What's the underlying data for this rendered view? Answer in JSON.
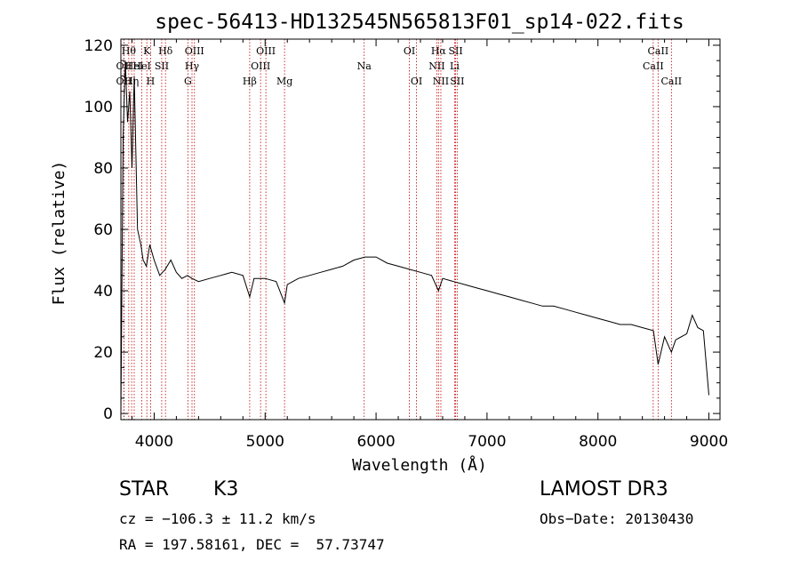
{
  "chart_data": {
    "type": "line",
    "title": "spec-56413-HD132545N565813F01_sp14-022.fits",
    "xlabel": "Wavelength (Å)",
    "ylabel": "Flux (relative)",
    "xlim": [
      3700,
      9100
    ],
    "ylim": [
      -2,
      122
    ],
    "xticks": [
      4000,
      5000,
      6000,
      7000,
      8000,
      9000
    ],
    "yticks": [
      0,
      20,
      40,
      60,
      80,
      100,
      120
    ],
    "grid": false,
    "line_color": "#000000",
    "marker_color": "#c00000",
    "spectrum": {
      "x": [
        3700,
        3720,
        3740,
        3760,
        3780,
        3800,
        3820,
        3850,
        3880,
        3900,
        3930,
        3960,
        4000,
        4050,
        4100,
        4150,
        4200,
        4250,
        4300,
        4340,
        4400,
        4500,
        4600,
        4700,
        4800,
        4861,
        4900,
        5000,
        5100,
        5175,
        5200,
        5300,
        5400,
        5500,
        5600,
        5700,
        5800,
        5900,
        6000,
        6100,
        6200,
        6300,
        6400,
        6500,
        6563,
        6600,
        6700,
        6800,
        6900,
        7000,
        7100,
        7200,
        7300,
        7400,
        7500,
        7600,
        7700,
        7800,
        7900,
        8000,
        8100,
        8200,
        8300,
        8400,
        8500,
        8542,
        8600,
        8662,
        8700,
        8800,
        8850,
        8900,
        8950,
        9000
      ],
      "y": [
        0,
        90,
        115,
        95,
        105,
        80,
        110,
        60,
        55,
        50,
        48,
        55,
        50,
        45,
        47,
        50,
        46,
        44,
        45,
        44,
        43,
        44,
        45,
        46,
        45,
        38,
        44,
        44,
        43,
        36,
        42,
        44,
        45,
        46,
        47,
        48,
        50,
        51,
        51,
        49,
        48,
        47,
        46,
        45,
        40,
        44,
        43,
        42,
        41,
        40,
        39,
        38,
        37,
        36,
        35,
        35,
        34,
        33,
        32,
        31,
        30,
        29,
        29,
        28,
        27,
        16,
        25,
        20,
        24,
        26,
        32,
        28,
        27,
        6
      ]
    },
    "lines": [
      {
        "x": 3727,
        "label": "OII",
        "row": 2
      },
      {
        "x": 3727,
        "label": "OII",
        "row": 3
      },
      {
        "x": 3771,
        "label": "Hθ",
        "row": 1
      },
      {
        "x": 3797,
        "label": "Hη",
        "row": 3
      },
      {
        "x": 3820,
        "label": "HeI",
        "row": 2
      },
      {
        "x": 3889,
        "label": "HeI",
        "row": 2
      },
      {
        "x": 3934,
        "label": "K",
        "row": 1
      },
      {
        "x": 3968,
        "label": "H",
        "row": 3
      },
      {
        "x": 4068,
        "label": "SII",
        "row": 2
      },
      {
        "x": 4102,
        "label": "Hδ",
        "row": 1
      },
      {
        "x": 4304,
        "label": "G",
        "row": 3
      },
      {
        "x": 4341,
        "label": "Hγ",
        "row": 2
      },
      {
        "x": 4363,
        "label": "OIII",
        "row": 1
      },
      {
        "x": 4861,
        "label": "Hβ",
        "row": 3
      },
      {
        "x": 4959,
        "label": "OIII",
        "row": 2
      },
      {
        "x": 5007,
        "label": "OIII",
        "row": 1
      },
      {
        "x": 5175,
        "label": "Mg",
        "row": 3
      },
      {
        "x": 5893,
        "label": "Na",
        "row": 2
      },
      {
        "x": 6300,
        "label": "OI",
        "row": 1
      },
      {
        "x": 6364,
        "label": "OI",
        "row": 3
      },
      {
        "x": 6548,
        "label": "NII",
        "row": 2
      },
      {
        "x": 6563,
        "label": "Hα",
        "row": 1
      },
      {
        "x": 6584,
        "label": "NII",
        "row": 3
      },
      {
        "x": 6708,
        "label": "Li",
        "row": 2
      },
      {
        "x": 6717,
        "label": "SII",
        "row": 1
      },
      {
        "x": 6731,
        "label": "SII",
        "row": 3
      },
      {
        "x": 8498,
        "label": "CaII",
        "row": 2
      },
      {
        "x": 8542,
        "label": "CaII",
        "row": 1
      },
      {
        "x": 8662,
        "label": "CaII",
        "row": 3
      }
    ]
  },
  "info": {
    "class": "STAR",
    "subclass": "K3",
    "survey": "LAMOST DR3",
    "cz": "cz = −106.3 ± 11.2 km/s",
    "obs_date": "Obs−Date: 20130430",
    "coords": "RA = 197.58161, DEC =  57.73747"
  }
}
